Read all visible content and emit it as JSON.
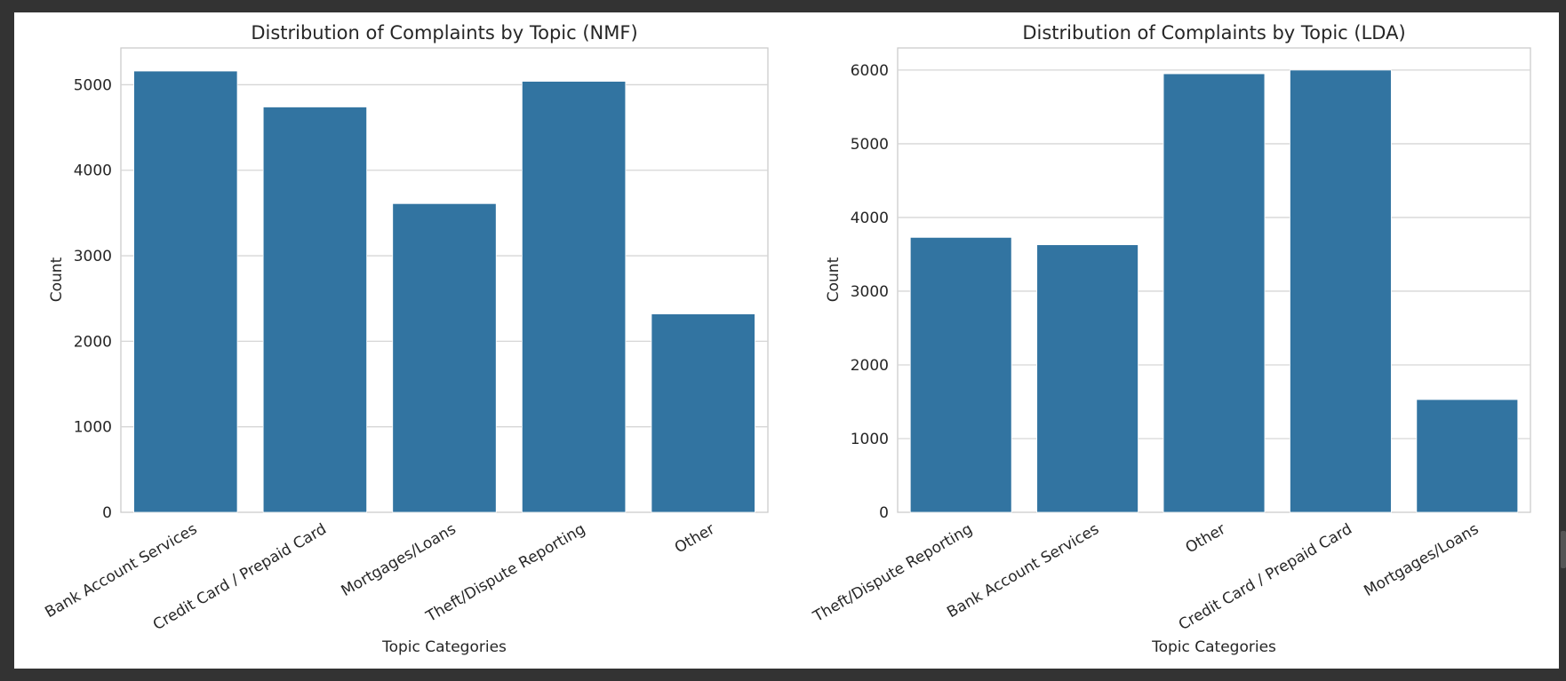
{
  "colors": {
    "bar": "#3274a1",
    "background": "#ffffff",
    "outer": "#333333"
  },
  "chart_data": [
    {
      "type": "bar",
      "title": "Distribution of Complaints by Topic (NMF)",
      "xlabel": "Topic Categories",
      "ylabel": "Count",
      "categories": [
        "Bank Account Services",
        "Credit Card / Prepaid Card",
        "Mortgages/Loans",
        "Theft/Dispute Reporting",
        "Other"
      ],
      "values": [
        5160,
        4740,
        3610,
        5040,
        2320
      ],
      "ylim": [
        0,
        5430
      ],
      "yticks": [
        0,
        1000,
        2000,
        3000,
        4000,
        5000
      ],
      "grid": true
    },
    {
      "type": "bar",
      "title": "Distribution of Complaints by Topic (LDA)",
      "xlabel": "Topic Categories",
      "ylabel": "Count",
      "categories": [
        "Theft/Dispute Reporting",
        "Bank Account Services",
        "Other",
        "Credit Card / Prepaid Card",
        "Mortgages/Loans"
      ],
      "values": [
        3730,
        3630,
        5950,
        6000,
        1530
      ],
      "ylim": [
        0,
        6300
      ],
      "yticks": [
        0,
        1000,
        2000,
        3000,
        4000,
        5000,
        6000
      ],
      "grid": true
    }
  ]
}
